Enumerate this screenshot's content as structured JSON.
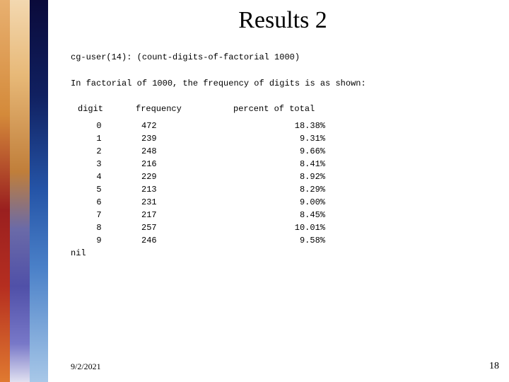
{
  "title": "Results 2",
  "command": "cg-user(14): (count-digits-of-factorial 1000)",
  "description": "In factorial of 1000, the frequency of digits is as shown:",
  "headers": {
    "digit": "digit",
    "frequency": "frequency",
    "percent": "percent of total"
  },
  "rows": [
    {
      "d": "0",
      "f": "472",
      "p": "18.38%"
    },
    {
      "d": "1",
      "f": "239",
      "p": "9.31%"
    },
    {
      "d": "2",
      "f": "248",
      "p": "9.66%"
    },
    {
      "d": "3",
      "f": "216",
      "p": "8.41%"
    },
    {
      "d": "4",
      "f": "229",
      "p": "8.92%"
    },
    {
      "d": "5",
      "f": "213",
      "p": "8.29%"
    },
    {
      "d": "6",
      "f": "231",
      "p": "9.00%"
    },
    {
      "d": "7",
      "f": "217",
      "p": "8.45%"
    },
    {
      "d": "8",
      "f": "257",
      "p": "10.01%"
    },
    {
      "d": "9",
      "f": "246",
      "p": "9.58%"
    }
  ],
  "nil": "nil",
  "footer": {
    "date": "9/2/2021",
    "page": "18"
  },
  "colors": {
    "background": "#ffffff",
    "text": "#000000"
  }
}
